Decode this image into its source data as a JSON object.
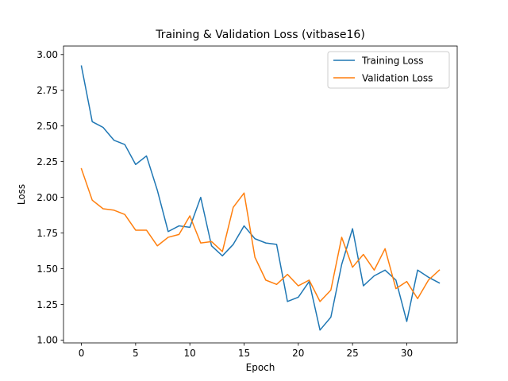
{
  "chart_data": {
    "type": "line",
    "title": "Training & Validation Loss (vitbase16)",
    "xlabel": "Epoch",
    "ylabel": "Loss",
    "xlim": [
      -1.65,
      34.65
    ],
    "ylim": [
      0.98,
      3.06
    ],
    "xticks": [
      0,
      5,
      10,
      15,
      20,
      25,
      30
    ],
    "yticks": [
      1.0,
      1.25,
      1.5,
      1.75,
      2.0,
      2.25,
      2.5,
      2.75,
      3.0
    ],
    "ytick_labels": [
      "1.00",
      "1.25",
      "1.50",
      "1.75",
      "2.00",
      "2.25",
      "2.50",
      "2.75",
      "3.00"
    ],
    "xtick_labels": [
      "0",
      "5",
      "10",
      "15",
      "20",
      "25",
      "30"
    ],
    "grid": false,
    "legend_position": "top-right",
    "x": [
      0,
      1,
      2,
      3,
      4,
      5,
      6,
      7,
      8,
      9,
      10,
      11,
      12,
      13,
      14,
      15,
      16,
      17,
      18,
      19,
      20,
      21,
      22,
      23,
      24,
      25,
      26,
      27,
      28,
      29,
      30,
      31,
      32,
      33
    ],
    "series": [
      {
        "name": "Training Loss",
        "color": "#1f77b4",
        "values": [
          2.92,
          2.53,
          2.49,
          2.4,
          2.37,
          2.23,
          2.29,
          2.05,
          1.76,
          1.8,
          1.79,
          2.0,
          1.66,
          1.59,
          1.67,
          1.8,
          1.71,
          1.68,
          1.67,
          1.27,
          1.3,
          1.41,
          1.07,
          1.16,
          1.53,
          1.78,
          1.38,
          1.45,
          1.49,
          1.42,
          1.13,
          1.49,
          1.44,
          1.4
        ]
      },
      {
        "name": "Validation Loss",
        "color": "#ff7f0e",
        "values": [
          2.2,
          1.98,
          1.92,
          1.91,
          1.88,
          1.77,
          1.77,
          1.66,
          1.72,
          1.74,
          1.87,
          1.68,
          1.69,
          1.62,
          1.93,
          2.03,
          1.58,
          1.42,
          1.39,
          1.46,
          1.38,
          1.42,
          1.27,
          1.35,
          1.72,
          1.51,
          1.6,
          1.49,
          1.64,
          1.36,
          1.41,
          1.29,
          1.42,
          1.49
        ]
      }
    ]
  }
}
